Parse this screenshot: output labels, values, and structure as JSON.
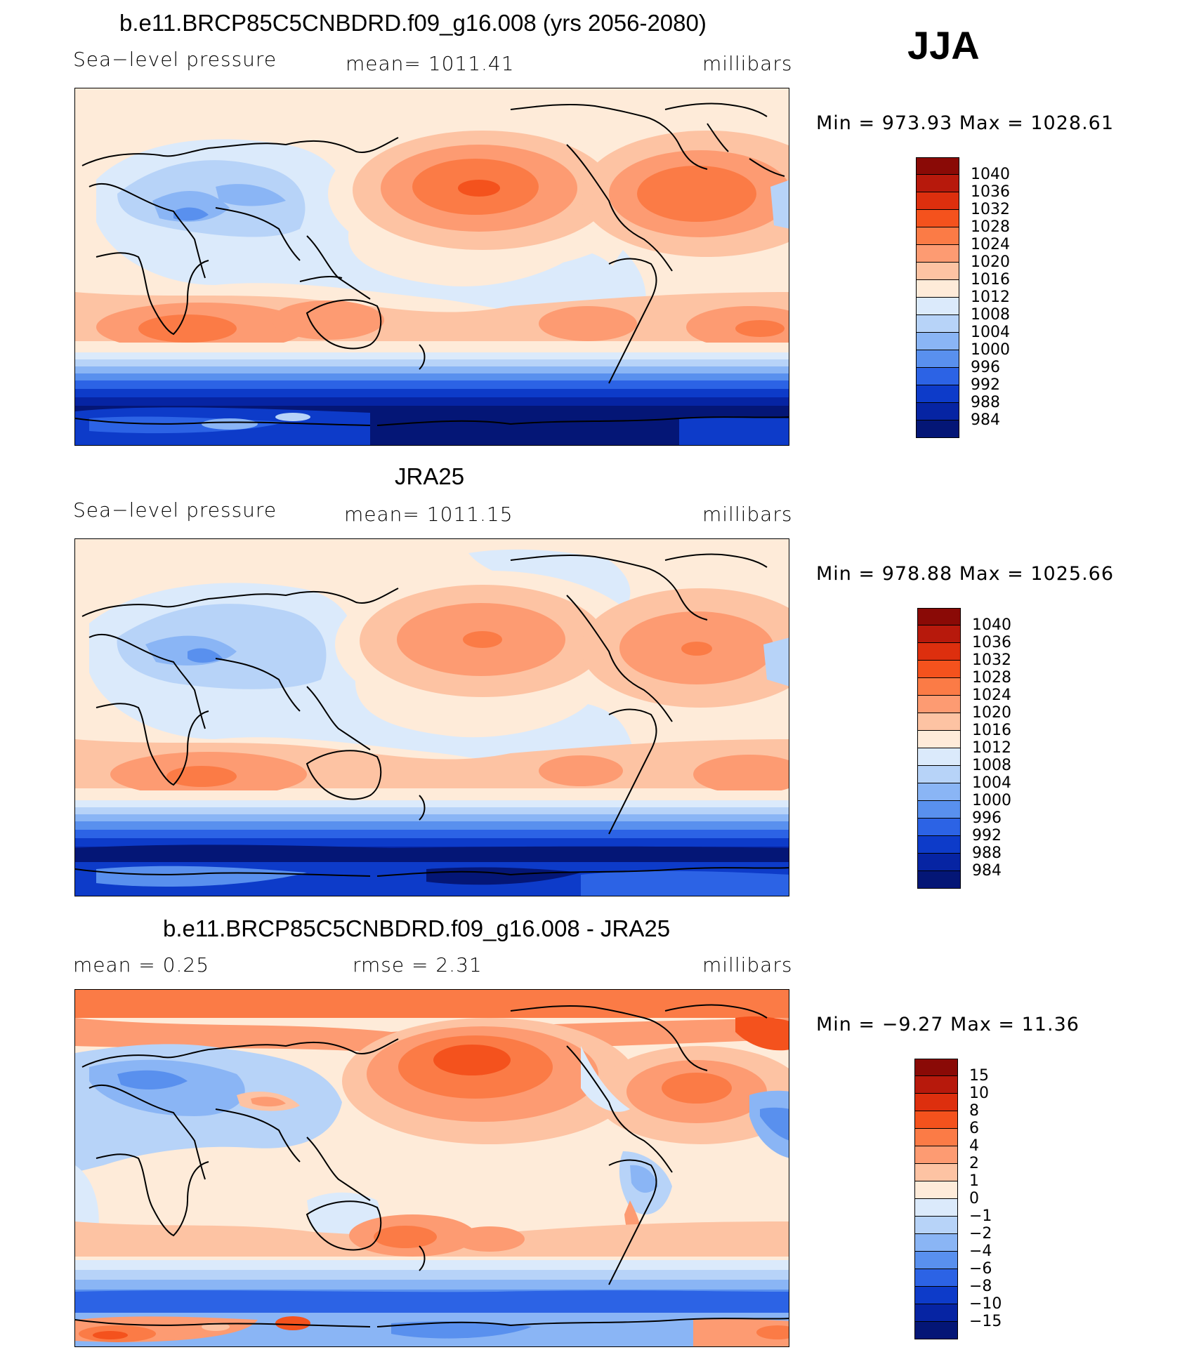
{
  "season": "JJA",
  "panels": [
    {
      "title": "b.e11.BRCP85C5CNBDRD.f09_g16.008 (yrs 2056-2080)",
      "left": "Sea−level pressure",
      "center": "mean=  1011.41",
      "right": "millibars",
      "minmax": "Min  =  973.93  Max  =  1028.61",
      "colorbar_labels": [
        "1040",
        "1036",
        "1032",
        "1028",
        "1024",
        "1020",
        "1016",
        "1012",
        "1008",
        "1004",
        "1000",
        "996",
        "992",
        "988",
        "984"
      ],
      "kind": "model"
    },
    {
      "title": "JRA25",
      "left": "Sea−level pressure",
      "center": "mean=  1011.15",
      "right": "millibars",
      "minmax": "Min  =  978.88  Max  =  1025.66",
      "colorbar_labels": [
        "1040",
        "1036",
        "1032",
        "1028",
        "1024",
        "1020",
        "1016",
        "1012",
        "1008",
        "1004",
        "1000",
        "996",
        "992",
        "988",
        "984"
      ],
      "kind": "obs"
    },
    {
      "title": "b.e11.BRCP85C5CNBDRD.f09_g16.008 - JRA25",
      "left": "mean  =      0.25",
      "center": "rmse  =      2.31",
      "right": "millibars",
      "minmax": "Min  =    −9.27  Max  =     11.36",
      "colorbar_labels": [
        "15",
        "10",
        "8",
        "6",
        "4",
        "2",
        "1",
        "0",
        "−1",
        "−2",
        "−4",
        "−6",
        "−8",
        "−10",
        "−15"
      ],
      "kind": "diff"
    }
  ],
  "colorbar_colors": [
    "#8a0a06",
    "#b7190c",
    "#dd2f0e",
    "#f4521d",
    "#fb7b46",
    "#fd9b72",
    "#fdc3a3",
    "#feebd9",
    "#dbeafb",
    "#b7d3f8",
    "#8ab5f5",
    "#5990ee",
    "#2c63e5",
    "#0d3bc9",
    "#0624a3",
    "#041676"
  ],
  "colors": {
    "frame": "#000000",
    "coast": "#000000"
  }
}
